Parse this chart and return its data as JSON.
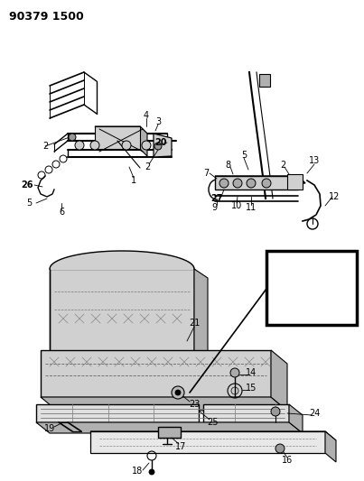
{
  "title": "90379 1500",
  "bg_color": "#ffffff",
  "line_color": "#000000",
  "title_fontsize": 9,
  "fig_width": 4.03,
  "fig_height": 5.33,
  "dpi": 100,
  "gray_light": "#d0d0d0",
  "gray_mid": "#b0b0b0",
  "gray_dark": "#888888"
}
